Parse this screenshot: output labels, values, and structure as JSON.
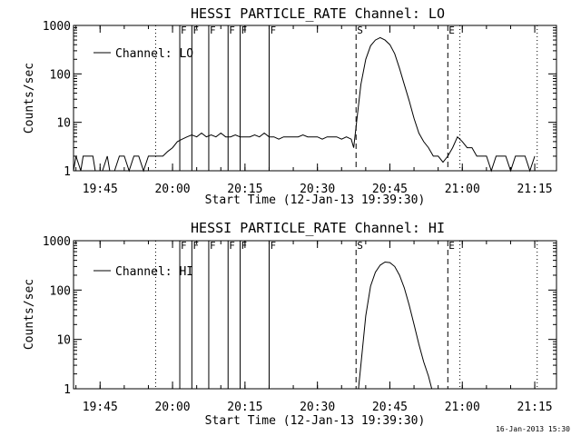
{
  "footer_stamp": "16-Jan-2013 15:30",
  "chart_data": [
    {
      "type": "line",
      "title": "HESSI PARTICLE_RATE Channel: LO",
      "xlabel": "Start Time (12-Jan-13 19:39:30)",
      "ylabel": "Counts/sec",
      "yscale": "log",
      "ylim": [
        1,
        1000
      ],
      "xlim": [
        "19:39:30",
        "21:19:30"
      ],
      "x_ticks": [
        "19:45",
        "20:00",
        "20:15",
        "20:30",
        "20:45",
        "21:00",
        "21:15"
      ],
      "y_ticks": [
        "1",
        "10",
        "100",
        "1000"
      ],
      "legend": {
        "entries": [
          "Channel: LO"
        ],
        "placement": "top-left"
      },
      "markers": [
        {
          "label": "F",
          "time": "20:01:30",
          "style": "solid"
        },
        {
          "label": "F",
          "time": "20:04:00",
          "style": "solid"
        },
        {
          "label": "F",
          "time": "20:07:30",
          "style": "solid"
        },
        {
          "label": "F",
          "time": "20:11:30",
          "style": "solid"
        },
        {
          "label": "F",
          "time": "20:14:00",
          "style": "solid"
        },
        {
          "label": "F",
          "time": "20:20:00",
          "style": "solid"
        },
        {
          "label": "S",
          "time": "20:38:00",
          "style": "dashed"
        },
        {
          "label": "E",
          "time": "20:57:00",
          "style": "dashed"
        }
      ],
      "guides": [
        "19:56:30",
        "20:59:30",
        "21:15:30"
      ],
      "series": [
        {
          "name": "Channel: LO",
          "x": [
            "19:39:30",
            "19:40:00",
            "19:41:00",
            "19:41:30",
            "19:42:30",
            "19:43:30",
            "19:44:00",
            "19:45:30",
            "19:46:30",
            "19:47:00",
            "19:48:00",
            "19:49:00",
            "19:50:00",
            "19:51:00",
            "19:52:00",
            "19:53:00",
            "19:54:00",
            "19:55:00",
            "19:56:00",
            "19:57:00",
            "19:58:00",
            "19:59:00",
            "20:00:00",
            "20:01:00",
            "20:02:00",
            "20:03:00",
            "20:04:00",
            "20:05:00",
            "20:06:00",
            "20:07:00",
            "20:08:00",
            "20:09:00",
            "20:10:00",
            "20:11:00",
            "20:12:00",
            "20:13:00",
            "20:14:00",
            "20:15:00",
            "20:16:00",
            "20:17:00",
            "20:18:00",
            "20:19:00",
            "20:20:00",
            "20:21:00",
            "20:22:00",
            "20:23:00",
            "20:24:00",
            "20:25:00",
            "20:26:00",
            "20:27:00",
            "20:28:00",
            "20:29:00",
            "20:30:00",
            "20:31:00",
            "20:32:00",
            "20:33:00",
            "20:34:00",
            "20:35:00",
            "20:36:00",
            "20:37:00",
            "20:37:30",
            "20:38:00",
            "20:39:00",
            "20:40:00",
            "20:41:00",
            "20:42:00",
            "20:43:00",
            "20:44:00",
            "20:45:00",
            "20:46:00",
            "20:47:00",
            "20:48:00",
            "20:49:00",
            "20:50:00",
            "20:51:00",
            "20:52:00",
            "20:53:00",
            "20:54:00",
            "20:55:00",
            "20:56:00",
            "20:57:00",
            "20:58:00",
            "20:59:00",
            "21:00:00",
            "21:01:00",
            "21:02:00",
            "21:03:00",
            "21:04:00",
            "21:05:00",
            "21:06:00",
            "21:07:00",
            "21:08:00",
            "21:09:00",
            "21:10:00",
            "21:11:00",
            "21:12:00",
            "21:13:00",
            "21:14:00",
            "21:15:00"
          ],
          "y": [
            1,
            2,
            1,
            2,
            2,
            2,
            1,
            1,
            2,
            1,
            1,
            2,
            2,
            1,
            2,
            2,
            1,
            2,
            2,
            2,
            2,
            2.5,
            3,
            4,
            4.5,
            5,
            5.5,
            5,
            6,
            5,
            5.5,
            5,
            6,
            5,
            5,
            5.5,
            5,
            5,
            5,
            5.5,
            5,
            6,
            5,
            5,
            4.5,
            5,
            5,
            5,
            5,
            5.5,
            5,
            5,
            5,
            4.5,
            5,
            5,
            5,
            4.5,
            5,
            4.5,
            3,
            8,
            60,
            200,
            380,
            500,
            560,
            500,
            400,
            260,
            130,
            60,
            28,
            12,
            6,
            4,
            3,
            2,
            2,
            1.5,
            2,
            3,
            5,
            4,
            3,
            3,
            2,
            2,
            2,
            1,
            2,
            2,
            2,
            1,
            2,
            2,
            2,
            1,
            2
          ]
        }
      ]
    },
    {
      "type": "line",
      "title": "HESSI PARTICLE_RATE Channel: HI",
      "xlabel": "Start Time (12-Jan-13 19:39:30)",
      "ylabel": "Counts/sec",
      "yscale": "log",
      "ylim": [
        1,
        1000
      ],
      "xlim": [
        "19:39:30",
        "21:19:30"
      ],
      "x_ticks": [
        "19:45",
        "20:00",
        "20:15",
        "20:30",
        "20:45",
        "21:00",
        "21:15"
      ],
      "y_ticks": [
        "1",
        "10",
        "100",
        "1000"
      ],
      "legend": {
        "entries": [
          "Channel: HI"
        ],
        "placement": "top-left"
      },
      "markers": [
        {
          "label": "F",
          "time": "20:01:30",
          "style": "solid"
        },
        {
          "label": "F",
          "time": "20:04:00",
          "style": "solid"
        },
        {
          "label": "F",
          "time": "20:07:30",
          "style": "solid"
        },
        {
          "label": "F",
          "time": "20:11:30",
          "style": "solid"
        },
        {
          "label": "F",
          "time": "20:14:00",
          "style": "solid"
        },
        {
          "label": "F",
          "time": "20:20:00",
          "style": "solid"
        },
        {
          "label": "S",
          "time": "20:38:00",
          "style": "dashed"
        },
        {
          "label": "E",
          "time": "20:57:00",
          "style": "dashed"
        }
      ],
      "guides": [
        "19:56:30",
        "20:59:30",
        "21:15:30"
      ],
      "series": [
        {
          "name": "Channel: HI",
          "x": [
            "20:38:30",
            "20:39:00",
            "20:40:00",
            "20:41:00",
            "20:42:00",
            "20:43:00",
            "20:44:00",
            "20:45:00",
            "20:46:00",
            "20:47:00",
            "20:48:00",
            "20:49:00",
            "20:50:00",
            "20:51:00",
            "20:52:00",
            "20:53:00",
            "20:53:40"
          ],
          "y": [
            1,
            3,
            30,
            120,
            230,
            320,
            370,
            360,
            300,
            200,
            110,
            50,
            20,
            8,
            3.5,
            1.8,
            1
          ]
        }
      ]
    }
  ]
}
